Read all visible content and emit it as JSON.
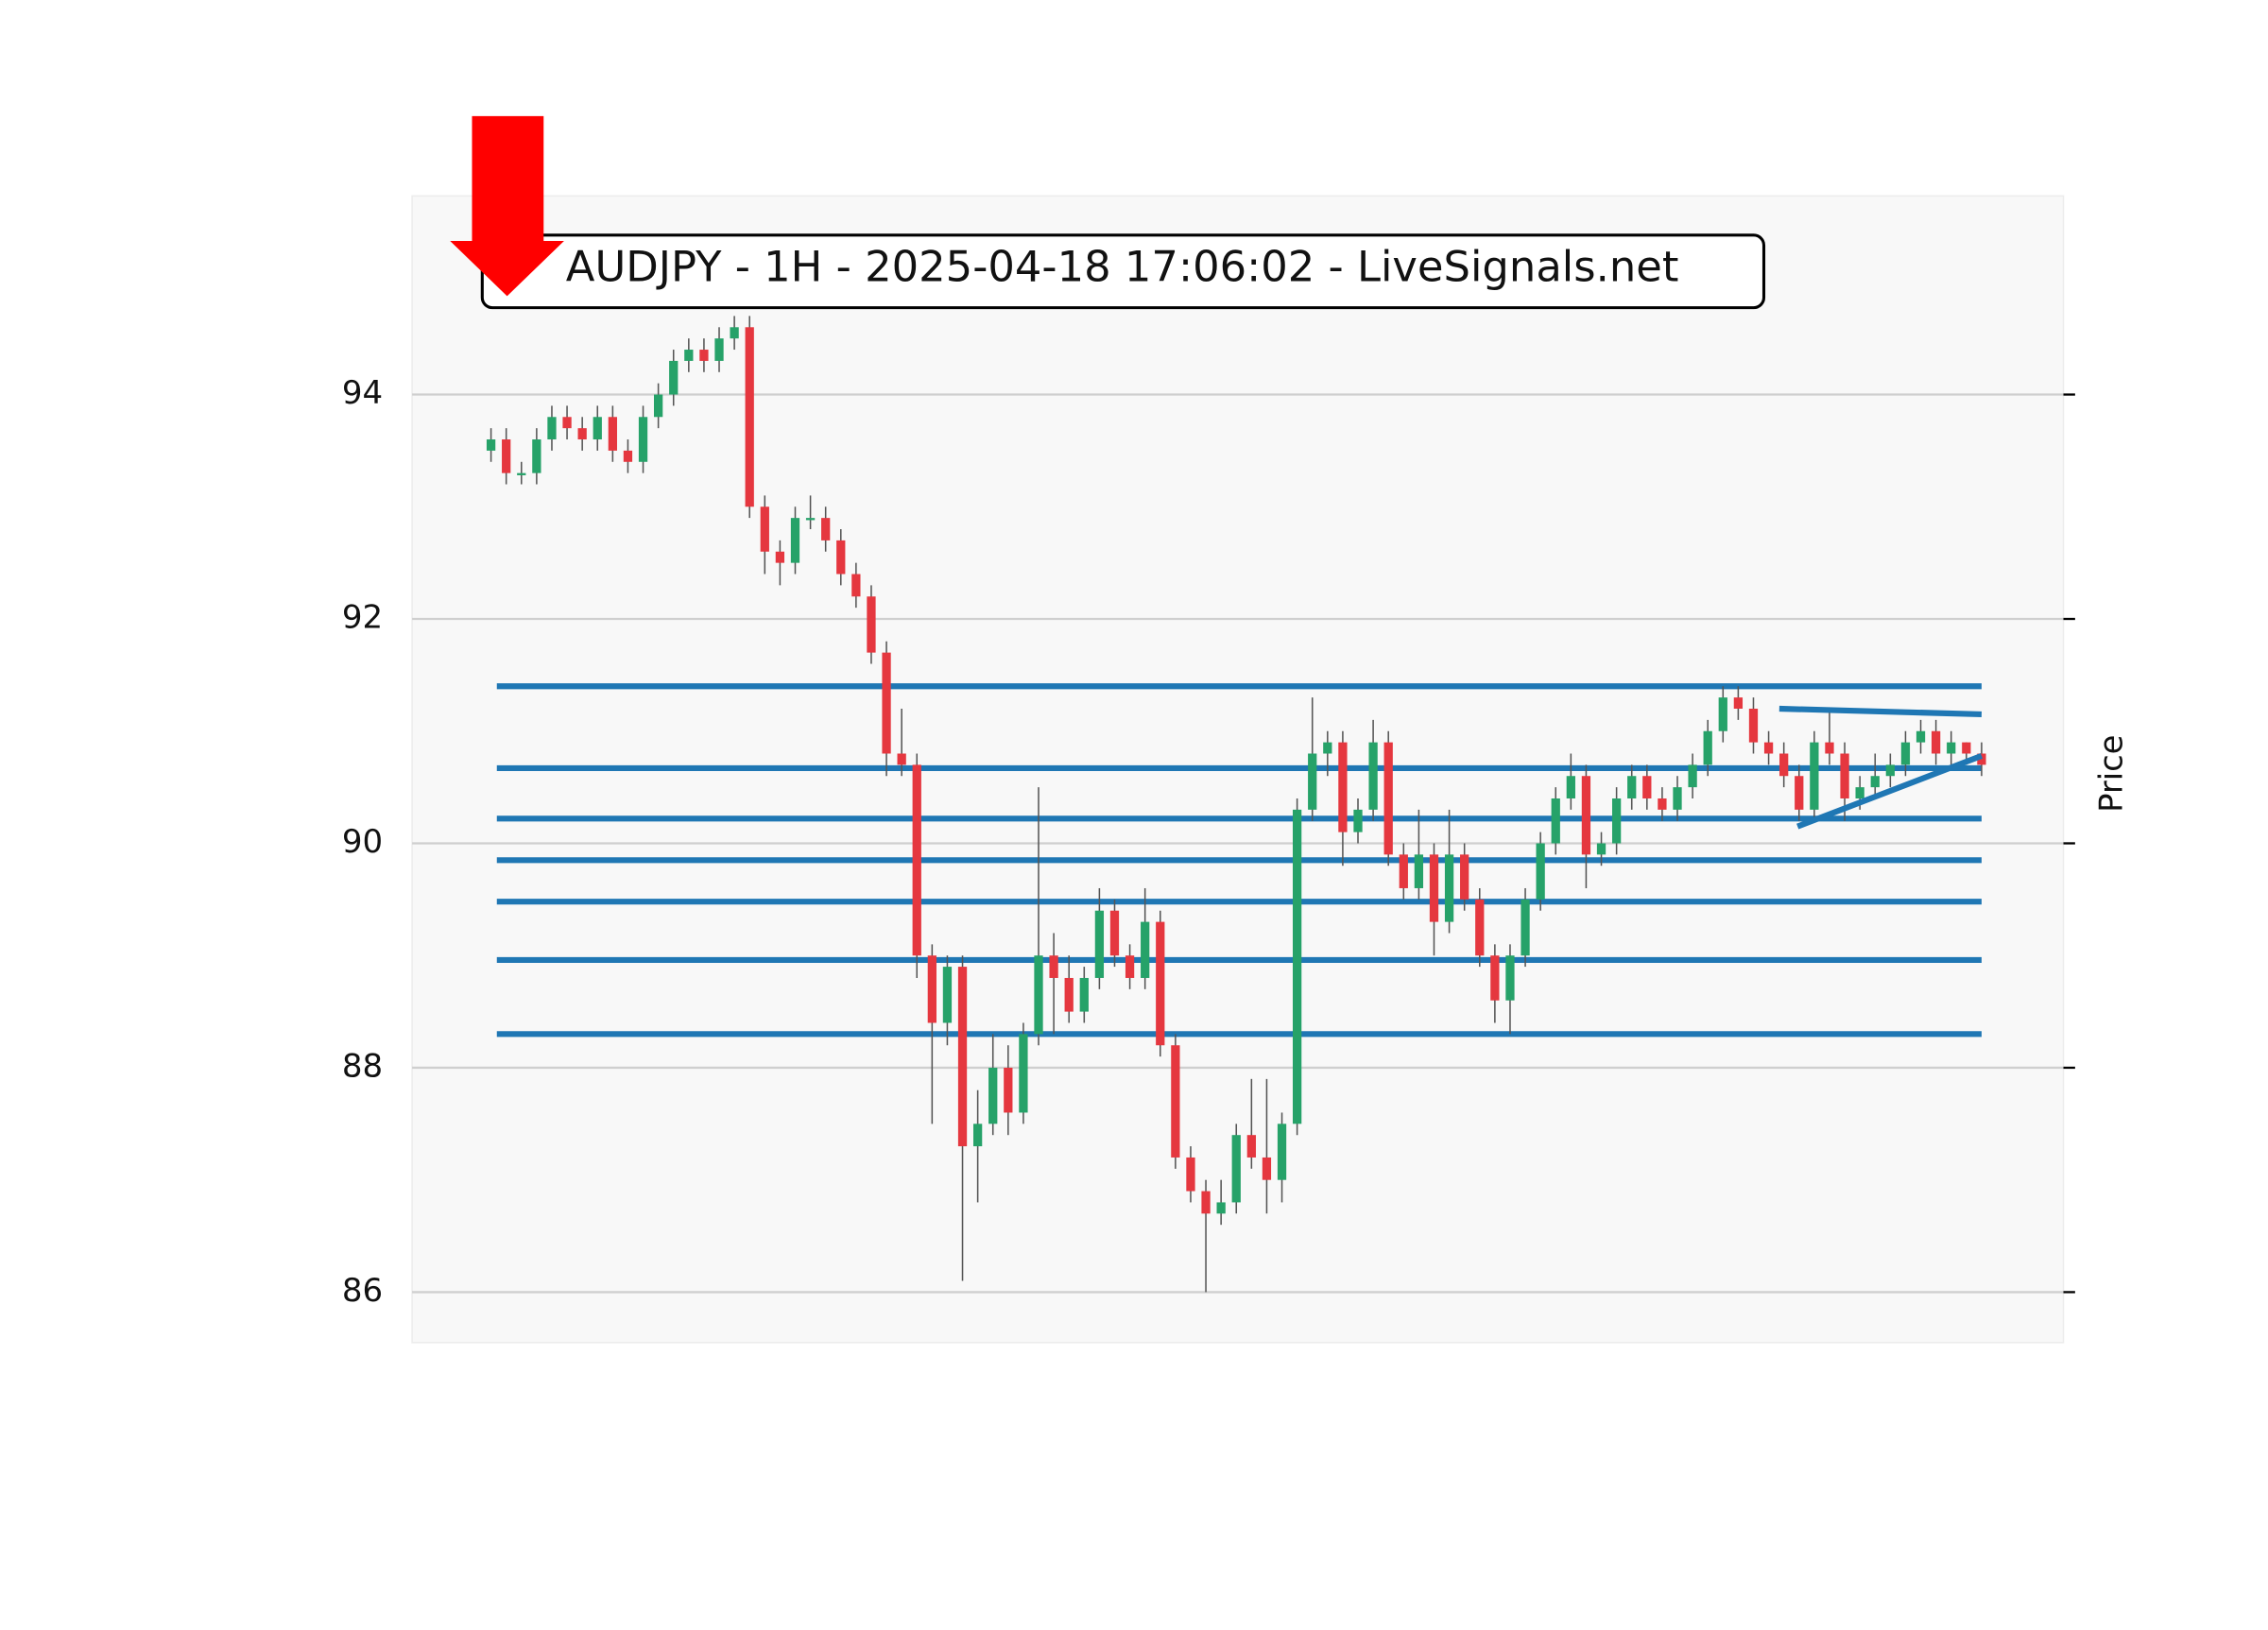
{
  "chart_data": {
    "type": "candlestick",
    "title": "AUDJPY - 1H - 2025-04-18 17:06:02 - LiveSignals.net",
    "y_label": "Price",
    "ylim": [
      85.55,
      95.77
    ],
    "yticks": [
      86,
      88,
      90,
      92,
      94
    ],
    "grid": true,
    "up_color": "#26a269",
    "down_color": "#e5373f",
    "line_color": "#1f77b4",
    "open": [
      93.5,
      93.6,
      93.3,
      93.3,
      93.6,
      93.8,
      93.7,
      93.6,
      93.8,
      93.5,
      93.4,
      93.8,
      94.0,
      94.3,
      94.4,
      94.3,
      94.5,
      94.6,
      93.0,
      92.6,
      92.5,
      92.9,
      92.9,
      92.7,
      92.4,
      92.2,
      91.7,
      90.8,
      90.7,
      89.0,
      88.4,
      88.9,
      87.3,
      87.5,
      88.0,
      87.6,
      88.3,
      89.0,
      88.8,
      88.5,
      88.8,
      89.4,
      89.0,
      88.8,
      89.3,
      88.2,
      87.2,
      86.9,
      86.7,
      86.8,
      87.4,
      87.2,
      87.0,
      87.5,
      90.3,
      90.8,
      90.9,
      90.1,
      90.3,
      90.9,
      89.9,
      89.6,
      89.9,
      89.3,
      89.9,
      89.5,
      89.0,
      88.6,
      89.0,
      89.5,
      90.0,
      90.4,
      90.6,
      89.9,
      90.0,
      90.4,
      90.6,
      90.4,
      90.3,
      90.5,
      90.7,
      91.0,
      91.3,
      91.2,
      90.9,
      90.8,
      90.6,
      90.3,
      90.9,
      90.8,
      90.4,
      90.5,
      90.6,
      90.7,
      90.9,
      91.0,
      90.8,
      90.9,
      90.8
    ],
    "high": [
      93.7,
      93.7,
      93.4,
      93.7,
      93.9,
      93.9,
      93.8,
      93.9,
      93.9,
      93.6,
      93.9,
      94.1,
      94.4,
      94.5,
      94.5,
      94.6,
      94.7,
      94.7,
      93.1,
      92.7,
      93.0,
      93.1,
      93.0,
      92.8,
      92.5,
      92.3,
      91.8,
      91.2,
      90.8,
      89.1,
      89.0,
      89.0,
      87.8,
      88.3,
      88.2,
      88.4,
      90.5,
      89.2,
      89.0,
      88.9,
      89.6,
      89.5,
      89.1,
      89.6,
      89.4,
      88.3,
      87.3,
      87.0,
      87.0,
      87.5,
      87.9,
      87.9,
      87.6,
      90.4,
      91.3,
      91.0,
      91.0,
      90.4,
      91.1,
      91.0,
      90.0,
      90.3,
      90.0,
      90.3,
      90.0,
      89.6,
      89.1,
      89.1,
      89.6,
      90.1,
      90.5,
      90.8,
      90.7,
      90.1,
      90.5,
      90.7,
      90.7,
      90.5,
      90.6,
      90.8,
      91.1,
      91.4,
      91.4,
      91.3,
      91.0,
      90.9,
      90.7,
      91.0,
      91.2,
      90.9,
      90.6,
      90.8,
      90.8,
      91.0,
      91.1,
      91.1,
      91.0,
      90.9,
      90.9
    ],
    "low": [
      93.4,
      93.2,
      93.2,
      93.2,
      93.5,
      93.6,
      93.5,
      93.5,
      93.4,
      93.3,
      93.3,
      93.7,
      93.9,
      94.2,
      94.2,
      94.2,
      94.4,
      92.9,
      92.4,
      92.3,
      92.4,
      92.8,
      92.6,
      92.3,
      92.1,
      91.6,
      90.6,
      90.6,
      88.8,
      87.5,
      88.2,
      86.1,
      86.8,
      87.4,
      87.4,
      87.5,
      88.2,
      88.3,
      88.4,
      88.4,
      88.7,
      88.9,
      88.7,
      88.7,
      88.1,
      87.1,
      86.8,
      86.0,
      86.6,
      86.7,
      87.1,
      86.7,
      86.8,
      87.4,
      90.2,
      90.6,
      89.8,
      90.0,
      90.2,
      89.8,
      89.5,
      89.5,
      89.0,
      89.2,
      89.4,
      88.9,
      88.4,
      88.3,
      88.9,
      89.4,
      89.9,
      90.3,
      89.6,
      89.8,
      89.9,
      90.3,
      90.3,
      90.2,
      90.2,
      90.4,
      90.6,
      90.9,
      91.1,
      90.8,
      90.7,
      90.5,
      90.2,
      90.2,
      90.7,
      90.2,
      90.3,
      90.4,
      90.5,
      90.6,
      90.8,
      90.7,
      90.7,
      90.7,
      90.6
    ],
    "close": [
      93.6,
      93.3,
      93.3,
      93.6,
      93.8,
      93.7,
      93.6,
      93.8,
      93.5,
      93.4,
      93.8,
      94.0,
      94.3,
      94.4,
      94.3,
      94.5,
      94.6,
      93.0,
      92.6,
      92.5,
      92.9,
      92.9,
      92.7,
      92.4,
      92.2,
      91.7,
      90.8,
      90.7,
      89.0,
      88.4,
      88.9,
      87.3,
      87.5,
      88.0,
      87.6,
      88.3,
      89.0,
      88.8,
      88.5,
      88.8,
      89.4,
      89.0,
      88.8,
      89.3,
      88.2,
      87.2,
      86.9,
      86.7,
      86.8,
      87.4,
      87.2,
      87.0,
      87.5,
      90.3,
      90.8,
      90.9,
      90.1,
      90.3,
      90.9,
      89.9,
      89.6,
      89.9,
      89.3,
      89.9,
      89.5,
      89.0,
      88.6,
      89.0,
      89.5,
      90.0,
      90.4,
      90.6,
      89.9,
      90.0,
      90.4,
      90.6,
      90.4,
      90.3,
      90.5,
      90.7,
      91.0,
      91.3,
      91.2,
      90.9,
      90.8,
      90.6,
      90.3,
      90.9,
      90.8,
      90.4,
      90.5,
      90.6,
      90.7,
      90.9,
      91.0,
      90.8,
      90.9,
      90.8,
      90.7
    ],
    "levels": [
      91.4,
      90.67,
      90.22,
      89.85,
      89.48,
      88.96,
      88.3
    ],
    "trendlines": [
      {
        "x": [
          84.7,
          98
        ],
        "y": [
          91.2,
          91.15
        ]
      },
      {
        "x": [
          85.9,
          98
        ],
        "y": [
          90.15,
          90.78
        ]
      }
    ]
  }
}
